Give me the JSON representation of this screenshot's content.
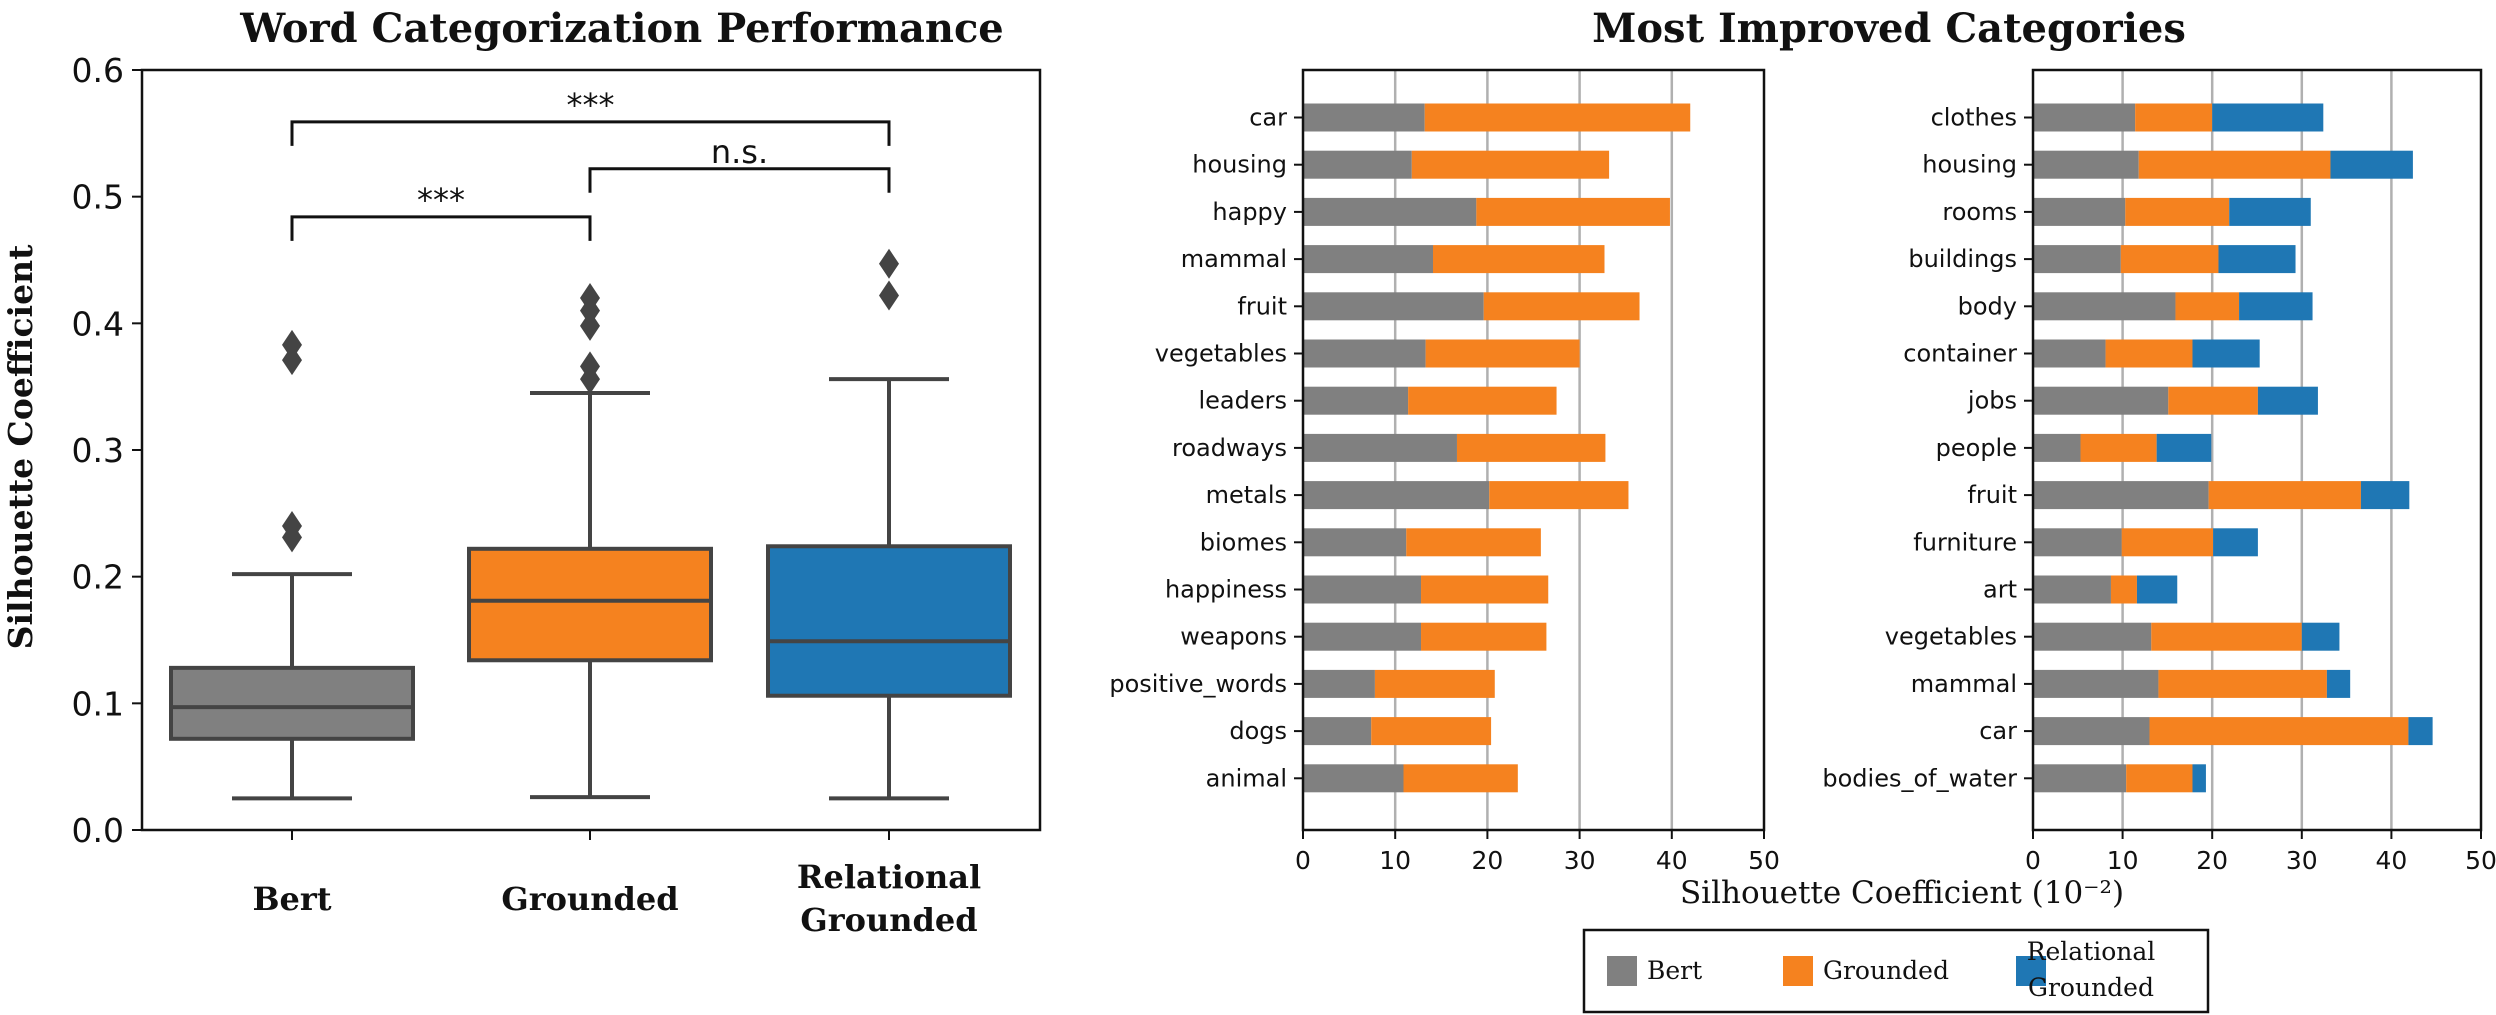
{
  "colors": {
    "bert": "#808080",
    "grounded": "#f5821f",
    "relational": "#1f77b4",
    "axis": "#111111",
    "grid": "#b0b0b0",
    "box_edge": "#444444"
  },
  "chart_data": [
    {
      "type": "box",
      "title": "Word Categorization Performance",
      "ylabel": "Silhouette Coefficient",
      "ylim": [
        0.0,
        0.6
      ],
      "yticks": [
        "0.0",
        "0.1",
        "0.2",
        "0.3",
        "0.4",
        "0.5",
        "0.6"
      ],
      "yticks_values": [
        0.0,
        0.1,
        0.2,
        0.3,
        0.4,
        0.5,
        0.6
      ],
      "grid": false,
      "groups": [
        {
          "name": "Bert",
          "label_lines": [
            "Bert"
          ],
          "color_key": "bert",
          "whisker_low": 0.025,
          "q1": 0.072,
          "median": 0.097,
          "q3": 0.128,
          "whisker_high": 0.202,
          "outliers": [
            0.231,
            0.24,
            0.371,
            0.383
          ]
        },
        {
          "name": "Grounded",
          "label_lines": [
            "Grounded"
          ],
          "color_key": "grounded",
          "whisker_low": 0.026,
          "q1": 0.134,
          "median": 0.181,
          "q3": 0.222,
          "whisker_high": 0.345,
          "outliers": [
            0.356,
            0.366,
            0.398,
            0.41,
            0.42
          ]
        },
        {
          "name": "Relational Grounded",
          "label_lines": [
            "Relational",
            "Grounded"
          ],
          "color_key": "relational",
          "whisker_low": 0.025,
          "q1": 0.106,
          "median": 0.149,
          "q3": 0.224,
          "whisker_high": 0.356,
          "outliers": [
            0.422,
            0.447
          ]
        }
      ],
      "annotations": [
        {
          "from": 0,
          "to": 1,
          "text": "***",
          "y": 0.484
        },
        {
          "from": 0,
          "to": 2,
          "text": "***",
          "y": 0.559
        },
        {
          "from": 1,
          "to": 2,
          "text": "n.s.",
          "y": 0.522
        }
      ]
    },
    {
      "type": "stacked_barh",
      "title": "Most Improved Categories",
      "xlabel": "Silhouette Coefficient (10⁻²)",
      "xlim": [
        0,
        50
      ],
      "xticks": [
        "0",
        "10",
        "20",
        "30",
        "40",
        "50"
      ],
      "xticks_values": [
        0,
        10,
        20,
        30,
        40,
        50
      ],
      "grid": "vertical",
      "series": [
        {
          "name": "Bert",
          "color_key": "bert"
        },
        {
          "name": "Grounded",
          "color_key": "grounded"
        }
      ],
      "categories": [
        "car",
        "housing",
        "happy",
        "mammal",
        "fruit",
        "vegetables",
        "leaders",
        "roadways",
        "metals",
        "biomes",
        "happiness",
        "weapons",
        "positive_words",
        "dogs",
        "animal"
      ],
      "values": [
        [
          13.2,
          42.0
        ],
        [
          11.8,
          33.2
        ],
        [
          18.8,
          39.8
        ],
        [
          14.1,
          32.7
        ],
        [
          19.6,
          36.5
        ],
        [
          13.3,
          30.0
        ],
        [
          11.4,
          27.5
        ],
        [
          16.7,
          32.8
        ],
        [
          20.2,
          35.3
        ],
        [
          11.2,
          25.8
        ],
        [
          12.8,
          26.6
        ],
        [
          12.8,
          26.4
        ],
        [
          7.8,
          20.8
        ],
        [
          7.4,
          20.4
        ],
        [
          10.9,
          23.3
        ]
      ]
    },
    {
      "type": "stacked_barh",
      "xlim": [
        0,
        50
      ],
      "xticks": [
        "0",
        "10",
        "20",
        "30",
        "40",
        "50"
      ],
      "xticks_values": [
        0,
        10,
        20,
        30,
        40,
        50
      ],
      "grid": "vertical",
      "series": [
        {
          "name": "Bert",
          "color_key": "bert"
        },
        {
          "name": "Grounded",
          "color_key": "grounded"
        },
        {
          "name": "Relational Grounded",
          "color_key": "relational"
        }
      ],
      "categories": [
        "clothes",
        "housing",
        "rooms",
        "buildings",
        "body",
        "container",
        "jobs",
        "people",
        "fruit",
        "furniture",
        "art",
        "vegetables",
        "mammal",
        "car",
        "bodies_of_water"
      ],
      "values": [
        [
          11.4,
          20.0,
          32.4
        ],
        [
          11.8,
          33.2,
          42.4
        ],
        [
          10.3,
          21.9,
          31.0
        ],
        [
          9.8,
          20.7,
          29.3
        ],
        [
          15.9,
          23.0,
          31.2
        ],
        [
          8.1,
          17.8,
          25.3
        ],
        [
          15.1,
          25.1,
          31.8
        ],
        [
          5.3,
          13.8,
          19.9
        ],
        [
          19.6,
          36.6,
          42.0
        ],
        [
          9.9,
          20.1,
          25.1
        ],
        [
          8.7,
          11.6,
          16.1
        ],
        [
          13.2,
          30.0,
          34.2
        ],
        [
          14.0,
          32.8,
          35.4
        ],
        [
          13.0,
          41.9,
          44.6
        ],
        [
          10.4,
          17.8,
          19.3
        ]
      ]
    }
  ],
  "legend": {
    "items": [
      {
        "label_lines": [
          "Bert"
        ],
        "color_key": "bert"
      },
      {
        "label_lines": [
          "Grounded"
        ],
        "color_key": "grounded"
      },
      {
        "label_lines": [
          "Relational",
          "Grounded"
        ],
        "color_key": "relational"
      }
    ]
  }
}
